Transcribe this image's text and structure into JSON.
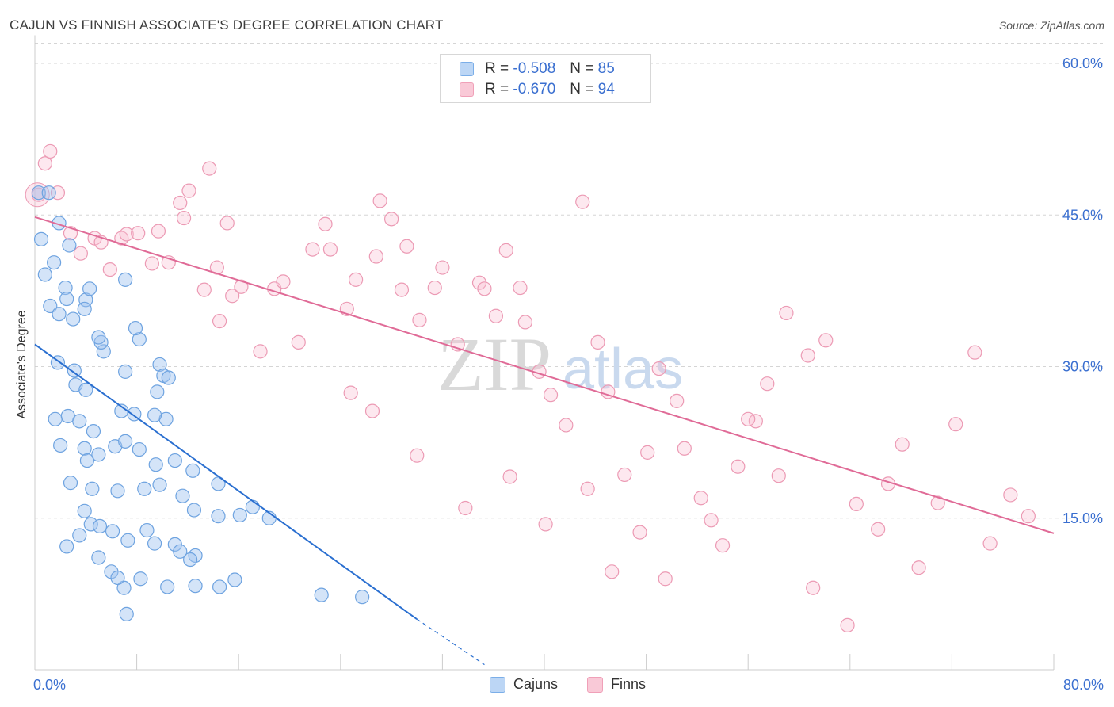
{
  "title": "CAJUN VS FINNISH ASSOCIATE'S DEGREE CORRELATION CHART",
  "source": "Source: ZipAtlas.com",
  "watermark": {
    "zip": "ZIP",
    "atlas": "atlas"
  },
  "legend_top": {
    "rows": [
      {
        "r_label": "R =",
        "r_value": "-0.508",
        "n_label": "N =",
        "n_value": "85",
        "color": "#7baee8",
        "fill": "#bcd6f5"
      },
      {
        "r_label": "R =",
        "r_value": "-0.670",
        "n_label": "N =",
        "n_value": "94",
        "color": "#f0a0b8",
        "fill": "#f9c9d7"
      }
    ]
  },
  "legend_bottom": {
    "cajuns": "Cajuns",
    "finns": "Finns"
  },
  "colors": {
    "blue_stroke": "#6ea3e0",
    "blue_fill": "rgba(160,196,240,0.45)",
    "blue_line": "#2a6fd0",
    "pink_stroke": "#ec9ab4",
    "pink_fill": "rgba(248,190,210,0.35)",
    "pink_line": "#e06b97",
    "tick_text": "#3a6fd0",
    "grid": "#d5d5d5"
  },
  "chart_data": {
    "type": "scatter",
    "title": "CAJUN VS FINNISH ASSOCIATE'S DEGREE CORRELATION CHART",
    "xlabel": "",
    "ylabel": "Associate's Degree",
    "xlim": [
      0,
      80
    ],
    "ylim": [
      0,
      62
    ],
    "x_tick_labels": [
      "0.0%",
      "80.0%"
    ],
    "y_ticks": [
      15,
      30,
      45,
      60
    ],
    "y_tick_labels": [
      "15.0%",
      "30.0%",
      "45.0%",
      "60.0%"
    ],
    "grid": "horizontal dashed",
    "series": [
      {
        "name": "Cajuns",
        "trend": {
          "x": [
            0,
            30
          ],
          "y": [
            32.2,
            5.0
          ],
          "dashed_to": [
            35.3,
            0.5
          ]
        },
        "points": [
          [
            0.3,
            47.2
          ],
          [
            0.5,
            42.6
          ],
          [
            0.8,
            39.1
          ],
          [
            1.5,
            40.3
          ],
          [
            1.2,
            36.0
          ],
          [
            1.9,
            35.2
          ],
          [
            3.0,
            34.7
          ],
          [
            4.0,
            36.6
          ],
          [
            2.4,
            37.8
          ],
          [
            4.3,
            37.7
          ],
          [
            3.9,
            35.7
          ],
          [
            7.1,
            38.6
          ],
          [
            1.9,
            44.2
          ],
          [
            1.1,
            47.2
          ],
          [
            2.7,
            42.0
          ],
          [
            2.5,
            36.7
          ],
          [
            5.4,
            31.5
          ],
          [
            1.8,
            30.4
          ],
          [
            3.2,
            28.2
          ],
          [
            3.1,
            29.6
          ],
          [
            4.0,
            27.7
          ],
          [
            5.2,
            32.4
          ],
          [
            5.0,
            32.9
          ],
          [
            8.2,
            32.7
          ],
          [
            7.9,
            33.8
          ],
          [
            9.8,
            30.2
          ],
          [
            7.1,
            29.5
          ],
          [
            10.1,
            29.1
          ],
          [
            10.5,
            28.9
          ],
          [
            9.6,
            27.5
          ],
          [
            1.6,
            24.8
          ],
          [
            2.6,
            25.1
          ],
          [
            3.5,
            24.6
          ],
          [
            4.6,
            23.6
          ],
          [
            6.8,
            25.6
          ],
          [
            7.8,
            25.3
          ],
          [
            10.3,
            24.8
          ],
          [
            9.4,
            25.2
          ],
          [
            2.0,
            22.2
          ],
          [
            3.9,
            21.9
          ],
          [
            4.1,
            20.7
          ],
          [
            5.0,
            21.3
          ],
          [
            6.3,
            22.1
          ],
          [
            7.1,
            22.6
          ],
          [
            8.2,
            21.8
          ],
          [
            9.5,
            20.3
          ],
          [
            11.0,
            20.7
          ],
          [
            12.4,
            19.7
          ],
          [
            14.4,
            18.4
          ],
          [
            2.8,
            18.5
          ],
          [
            4.5,
            17.9
          ],
          [
            6.5,
            17.7
          ],
          [
            8.6,
            17.9
          ],
          [
            9.8,
            18.3
          ],
          [
            11.6,
            17.2
          ],
          [
            12.5,
            15.8
          ],
          [
            14.4,
            15.2
          ],
          [
            16.1,
            15.3
          ],
          [
            17.1,
            16.1
          ],
          [
            18.4,
            15.0
          ],
          [
            3.9,
            15.7
          ],
          [
            4.4,
            14.4
          ],
          [
            5.1,
            14.2
          ],
          [
            6.1,
            13.7
          ],
          [
            7.3,
            12.8
          ],
          [
            9.4,
            12.5
          ],
          [
            11.0,
            12.4
          ],
          [
            12.6,
            11.3
          ],
          [
            8.8,
            13.8
          ],
          [
            3.5,
            13.3
          ],
          [
            2.5,
            12.2
          ],
          [
            5.0,
            11.1
          ],
          [
            6.0,
            9.7
          ],
          [
            7.0,
            8.1
          ],
          [
            8.3,
            9.0
          ],
          [
            10.4,
            8.2
          ],
          [
            12.6,
            8.3
          ],
          [
            14.5,
            8.2
          ],
          [
            15.7,
            8.9
          ],
          [
            22.5,
            7.4
          ],
          [
            25.7,
            7.2
          ],
          [
            7.2,
            5.5
          ],
          [
            6.5,
            9.1
          ],
          [
            11.4,
            11.7
          ],
          [
            12.2,
            10.9
          ]
        ]
      },
      {
        "name": "Finns",
        "trend": {
          "x": [
            0,
            80
          ],
          "y": [
            44.8,
            13.5
          ]
        },
        "points": [
          [
            0.3,
            47.0
          ],
          [
            0.8,
            50.1
          ],
          [
            1.2,
            51.3
          ],
          [
            1.8,
            47.2
          ],
          [
            2.8,
            43.2
          ],
          [
            3.6,
            41.2
          ],
          [
            4.7,
            42.7
          ],
          [
            5.2,
            42.3
          ],
          [
            5.9,
            39.6
          ],
          [
            6.8,
            42.7
          ],
          [
            7.2,
            43.1
          ],
          [
            8.1,
            43.2
          ],
          [
            9.2,
            40.2
          ],
          [
            9.7,
            43.4
          ],
          [
            10.5,
            40.3
          ],
          [
            11.4,
            46.2
          ],
          [
            11.7,
            44.7
          ],
          [
            12.1,
            47.4
          ],
          [
            13.3,
            37.6
          ],
          [
            13.7,
            49.6
          ],
          [
            14.3,
            39.8
          ],
          [
            14.5,
            34.5
          ],
          [
            15.1,
            44.2
          ],
          [
            15.5,
            37.0
          ],
          [
            16.2,
            37.9
          ],
          [
            17.7,
            31.5
          ],
          [
            18.8,
            37.7
          ],
          [
            19.5,
            38.4
          ],
          [
            20.7,
            32.4
          ],
          [
            21.8,
            41.6
          ],
          [
            22.8,
            44.1
          ],
          [
            23.2,
            41.6
          ],
          [
            24.5,
            35.7
          ],
          [
            25.2,
            38.6
          ],
          [
            26.8,
            40.9
          ],
          [
            27.1,
            46.4
          ],
          [
            28.0,
            44.6
          ],
          [
            28.8,
            37.6
          ],
          [
            29.2,
            41.9
          ],
          [
            30.2,
            34.6
          ],
          [
            31.4,
            37.8
          ],
          [
            32.0,
            39.8
          ],
          [
            33.2,
            32.2
          ],
          [
            34.9,
            38.3
          ],
          [
            35.3,
            37.7
          ],
          [
            36.2,
            35.0
          ],
          [
            37.0,
            41.5
          ],
          [
            38.1,
            37.8
          ],
          [
            38.5,
            34.4
          ],
          [
            39.6,
            29.5
          ],
          [
            40.5,
            27.2
          ],
          [
            41.7,
            24.2
          ],
          [
            43.0,
            46.3
          ],
          [
            44.2,
            32.4
          ],
          [
            45.0,
            27.5
          ],
          [
            46.3,
            19.3
          ],
          [
            47.5,
            13.6
          ],
          [
            48.1,
            21.5
          ],
          [
            49.0,
            29.8
          ],
          [
            50.4,
            26.6
          ],
          [
            51.0,
            21.9
          ],
          [
            52.3,
            17.0
          ],
          [
            53.1,
            14.8
          ],
          [
            54.0,
            12.3
          ],
          [
            55.2,
            20.1
          ],
          [
            56.6,
            24.6
          ],
          [
            57.5,
            28.3
          ],
          [
            59.0,
            35.3
          ],
          [
            60.7,
            31.1
          ],
          [
            62.1,
            32.6
          ],
          [
            64.5,
            16.4
          ],
          [
            66.2,
            13.9
          ],
          [
            67.0,
            18.4
          ],
          [
            68.1,
            22.3
          ],
          [
            69.4,
            10.1
          ],
          [
            70.9,
            16.5
          ],
          [
            72.3,
            24.3
          ],
          [
            73.8,
            31.4
          ],
          [
            75.0,
            12.5
          ],
          [
            76.6,
            17.3
          ],
          [
            78.0,
            15.2
          ],
          [
            24.8,
            27.4
          ],
          [
            26.5,
            25.6
          ],
          [
            30.0,
            21.2
          ],
          [
            33.8,
            16.0
          ],
          [
            37.3,
            19.1
          ],
          [
            40.1,
            14.4
          ],
          [
            43.4,
            17.9
          ],
          [
            45.3,
            9.7
          ],
          [
            49.5,
            9.0
          ],
          [
            56.0,
            24.8
          ],
          [
            58.4,
            19.2
          ],
          [
            61.1,
            8.1
          ],
          [
            63.8,
            4.4
          ]
        ]
      }
    ]
  }
}
